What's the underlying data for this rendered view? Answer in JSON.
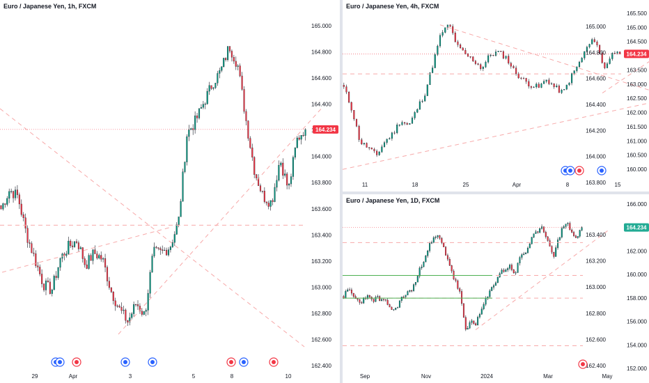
{
  "panes": {
    "left": {
      "title": "Euro / Japanese Yen, 1h, FXCM",
      "current_price": "164.234",
      "y_ticks": [
        "165.000",
        "164.800",
        "164.600",
        "164.400",
        "164.200",
        "164.000",
        "163.800",
        "163.600",
        "163.400",
        "163.200",
        "163.000",
        "162.800",
        "162.600",
        "162.400"
      ],
      "x_ticks": [
        "29",
        "Apr",
        "3",
        "5",
        "8",
        "10"
      ]
    },
    "top_right": {
      "title": "Euro / Japanese Yen, 4h, FXCM",
      "current_price": "164.234",
      "y_ticks_left": [
        "165.000",
        "164.800",
        "164.600",
        "164.400",
        "164.200",
        "164.000",
        "163.800"
      ],
      "y_ticks_right": [
        "165.500",
        "165.000",
        "164.500",
        "164.000",
        "163.500",
        "163.000",
        "162.500",
        "162.000",
        "161.500",
        "161.000",
        "160.500",
        "160.000"
      ],
      "x_ticks": [
        "11",
        "18",
        "25",
        "Apr",
        "8",
        "15"
      ]
    },
    "bottom_right": {
      "title": "Euro / Japanese Yen, 1D, FXCM",
      "current_price": "164.234",
      "y_ticks_left": [
        "163.400",
        "163.200",
        "163.000",
        "162.800",
        "162.600",
        "162.400"
      ],
      "y_ticks_right": [
        "166.000",
        "164.000",
        "162.000",
        "160.000",
        "158.000",
        "156.000",
        "154.000",
        "152.000"
      ],
      "x_ticks": [
        "Sep",
        "Nov",
        "2024",
        "Mar",
        "May"
      ]
    }
  },
  "colors": {
    "up": "#089981",
    "down": "#f23645",
    "dashed_line": "#f7a9a9",
    "price_tag": "#f23645",
    "price_tag_daily": "#22ab94",
    "support_green": "#4caf50",
    "event_blue": "#2962ff"
  },
  "chart_data": [
    {
      "type": "candlestick",
      "title": "Euro / Japanese Yen, 1h, FXCM",
      "ylim": [
        162.35,
        165.1
      ],
      "last_price": 164.234,
      "close_path": [
        163.6,
        163.75,
        163.7,
        163.4,
        163.2,
        163.0,
        162.95,
        163.2,
        163.3,
        163.35,
        163.15,
        163.25,
        163.2,
        162.95,
        162.8,
        162.7,
        162.85,
        162.75,
        163.25,
        163.25,
        163.3,
        163.5,
        164.2,
        164.3,
        164.45,
        164.6,
        164.7,
        164.9,
        164.75,
        164.3,
        163.9,
        163.7,
        163.65,
        164.0,
        163.75,
        164.15,
        164.25
      ],
      "horizontal_levels": [
        164.234,
        163.47
      ],
      "trendlines_dashed": [
        {
          "from": [
            0,
            164.4
          ],
          "to": [
            36,
            162.5
          ]
        },
        {
          "from": [
            14,
            162.6
          ],
          "to": [
            38,
            164.4
          ]
        },
        {
          "from": [
            -5,
            163.0
          ],
          "to": [
            20,
            163.45
          ]
        }
      ]
    },
    {
      "type": "candlestick",
      "title": "Euro / Japanese Yen, 4h, FXCM",
      "ylim": [
        159.7,
        165.7
      ],
      "last_price": 164.234,
      "close_path": [
        163.0,
        162.2,
        161.0,
        160.8,
        160.5,
        161.0,
        161.3,
        161.8,
        161.6,
        162.2,
        162.8,
        163.9,
        165.0,
        165.3,
        164.5,
        164.2,
        164.0,
        163.7,
        164.2,
        164.3,
        164.1,
        163.6,
        163.3,
        163.1,
        163.0,
        163.3,
        163.0,
        162.8,
        163.4,
        163.9,
        164.5,
        164.8,
        163.7,
        164.2,
        164.5
      ],
      "horizontal_levels": [
        164.234,
        163.5
      ],
      "trendlines_dashed": [
        {
          "from": [
            0,
            160.0
          ],
          "to": [
            45,
            162.9
          ]
        },
        {
          "from": [
            12,
            165.3
          ],
          "to": [
            40,
            162.7
          ]
        },
        {
          "from": [
            32,
            162.8
          ],
          "to": [
            42,
            164.8
          ]
        }
      ]
    },
    {
      "type": "candlestick",
      "title": "Euro / Japanese Yen, 1D, FXCM",
      "ylim": [
        151.8,
        166.3
      ],
      "last_price": 164.234,
      "close_path": [
        158.2,
        158.7,
        158.0,
        157.6,
        158.2,
        157.8,
        158.0,
        157.7,
        157.5,
        156.8,
        157.6,
        158.3,
        158.6,
        159.4,
        160.8,
        162.2,
        163.0,
        163.5,
        162.5,
        161.2,
        159.6,
        158.5,
        155.0,
        156.0,
        155.8,
        157.1,
        158.1,
        159.1,
        160.1,
        160.5,
        160.8,
        160.2,
        161.8,
        162.1,
        163.4,
        163.7,
        164.2,
        162.9,
        161.8,
        163.5,
        164.8,
        164.0,
        163.2,
        164.234
      ],
      "horizontal_levels": [
        164.234,
        160.0,
        158.0,
        153.8,
        162.9
      ],
      "trendlines_dashed": [
        {
          "from": [
            24,
            155.2
          ],
          "to": [
            48,
            164.0
          ]
        }
      ]
    }
  ]
}
